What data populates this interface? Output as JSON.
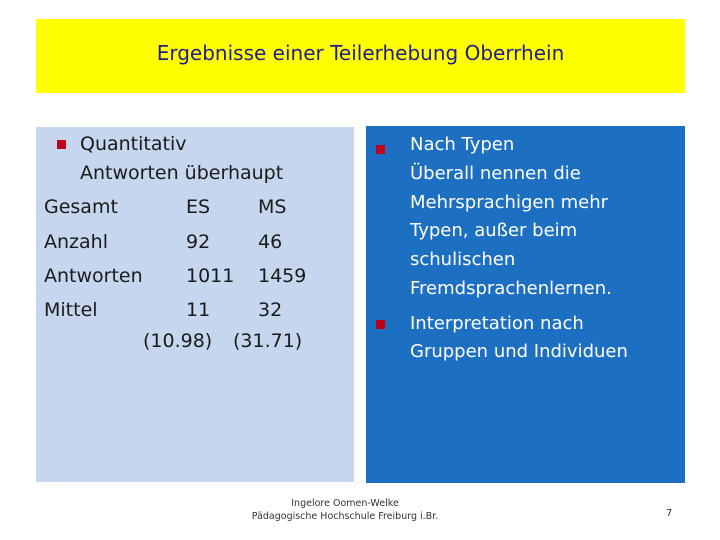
{
  "title": "Ergebnisse einer Teilerhebung Oberrhein",
  "colors": {
    "title_bg": "#ffff00",
    "left_bg": "#c5d6ee",
    "right_bg": "#1d6fc2",
    "bullet": "#c0001a"
  },
  "left": {
    "heading": "Quantitativ",
    "subheading": "Antworten überhaupt",
    "table": {
      "header": [
        "Gesamt",
        "ES",
        "MS"
      ],
      "rows": [
        [
          "Anzahl",
          "92",
          "46"
        ],
        [
          "Antworten",
          "1011",
          "1459"
        ],
        [
          "Mittel",
          "11",
          "32"
        ]
      ],
      "note_es": "(10.98)",
      "note_ms": "(31.71)"
    }
  },
  "right": {
    "bullet1_lines": [
      "Nach Typen",
      "Überall nennen die",
      "Mehrsprachigen mehr",
      "Typen, außer beim",
      "schulischen",
      "Fremdsprachenlernen."
    ],
    "bullet2_lines": [
      "Interpretation nach",
      "Gruppen und Individuen"
    ]
  },
  "footer": {
    "line1": "Ingelore Oomen-Welke",
    "line2": "Pädagogische Hochschule Freiburg i.Br."
  },
  "page_number": "7"
}
